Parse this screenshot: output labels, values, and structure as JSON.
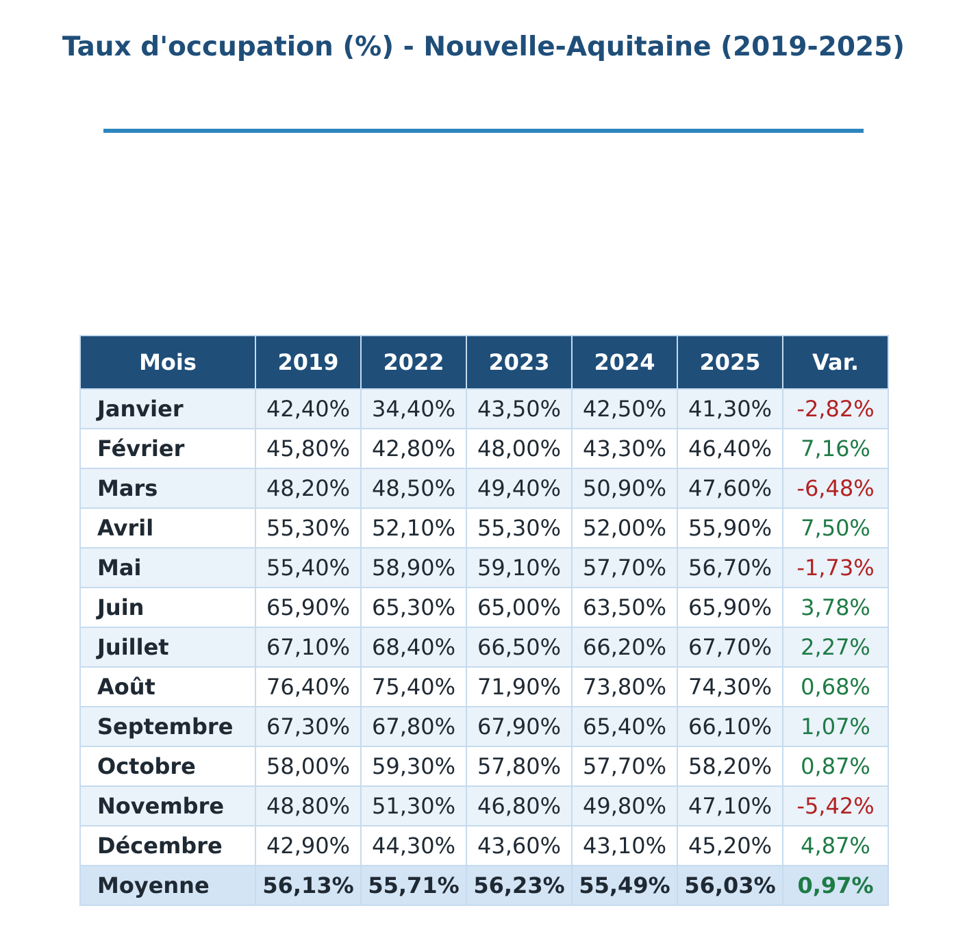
{
  "title": "Taux d'occupation (%) - Nouvelle-Aquitaine (2019-2025)",
  "colors": {
    "title": "#1f4e79",
    "rule": "#2e86c1",
    "header_bg": "#1f4e79",
    "positive": "#1e7b45",
    "negative": "#b22222"
  },
  "chart_data": {
    "type": "table",
    "title": "Taux d'occupation (%) - Nouvelle-Aquitaine (2019-2025)",
    "columns": [
      "Mois",
      "2019",
      "2022",
      "2023",
      "2024",
      "2025",
      "Var."
    ],
    "rows": [
      [
        "Janvier",
        "42,40%",
        "34,40%",
        "43,50%",
        "42,50%",
        "41,30%",
        "-2,82%"
      ],
      [
        "Février",
        "45,80%",
        "42,80%",
        "48,00%",
        "43,30%",
        "46,40%",
        "7,16%"
      ],
      [
        "Mars",
        "48,20%",
        "48,50%",
        "49,40%",
        "50,90%",
        "47,60%",
        "-6,48%"
      ],
      [
        "Avril",
        "55,30%",
        "52,10%",
        "55,30%",
        "52,00%",
        "55,90%",
        "7,50%"
      ],
      [
        "Mai",
        "55,40%",
        "58,90%",
        "59,10%",
        "57,70%",
        "56,70%",
        "-1,73%"
      ],
      [
        "Juin",
        "65,90%",
        "65,30%",
        "65,00%",
        "63,50%",
        "65,90%",
        "3,78%"
      ],
      [
        "Juillet",
        "67,10%",
        "68,40%",
        "66,50%",
        "66,20%",
        "67,70%",
        "2,27%"
      ],
      [
        "Août",
        "76,40%",
        "75,40%",
        "71,90%",
        "73,80%",
        "74,30%",
        "0,68%"
      ],
      [
        "Septembre",
        "67,30%",
        "67,80%",
        "67,90%",
        "65,40%",
        "66,10%",
        "1,07%"
      ],
      [
        "Octobre",
        "58,00%",
        "59,30%",
        "57,80%",
        "57,70%",
        "58,20%",
        "0,87%"
      ],
      [
        "Novembre",
        "48,80%",
        "51,30%",
        "46,80%",
        "49,80%",
        "47,10%",
        "-5,42%"
      ],
      [
        "Décembre",
        "42,90%",
        "44,30%",
        "43,60%",
        "43,10%",
        "45,20%",
        "4,87%"
      ]
    ],
    "summary": [
      "Moyenne",
      "56,13%",
      "55,71%",
      "56,23%",
      "55,49%",
      "56,03%",
      "0,97%"
    ]
  }
}
